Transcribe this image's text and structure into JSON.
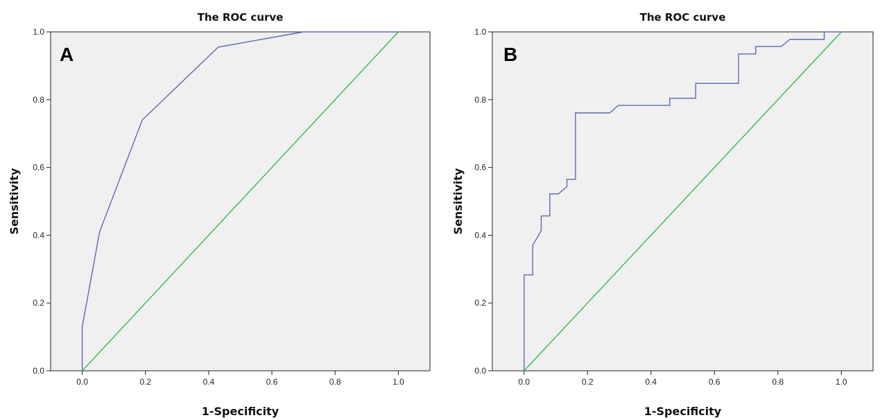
{
  "chart_data": [
    {
      "type": "line",
      "panel_letter": "A",
      "title": "The ROC curve",
      "xlabel": "1-Specificity",
      "ylabel": "Sensitivity",
      "xlim": [
        -0.1,
        1.1
      ],
      "ylim": [
        0.0,
        1.0
      ],
      "x_ticks": [
        "0.0",
        "0.2",
        "0.4",
        "0.6",
        "0.8",
        "1.0"
      ],
      "y_ticks": [
        "0.0",
        "0.2",
        "0.4",
        "0.6",
        "0.8",
        "1.0"
      ],
      "grid": false,
      "series": [
        {
          "role": "roc",
          "color": "#5a6bb0",
          "x": [
            0.0,
            0.0,
            0.055,
            0.19,
            0.43,
            0.7,
            1.0
          ],
          "y": [
            0.0,
            0.13,
            0.41,
            0.74,
            0.955,
            1.0,
            1.0
          ]
        },
        {
          "role": "reference",
          "color": "#35b84a",
          "x": [
            0.0,
            1.0
          ],
          "y": [
            0.0,
            1.0
          ]
        }
      ]
    },
    {
      "type": "line",
      "panel_letter": "B",
      "title": "The ROC curve",
      "xlabel": "1-Specificity",
      "ylabel": "Sensitivity",
      "xlim": [
        -0.1,
        1.1
      ],
      "ylim": [
        0.0,
        1.0
      ],
      "x_ticks": [
        "0.0",
        "0.2",
        "0.4",
        "0.6",
        "0.8",
        "1.0"
      ],
      "y_ticks": [
        "0.0",
        "0.2",
        "0.4",
        "0.6",
        "0.8",
        "1.0"
      ],
      "grid": false,
      "series": [
        {
          "role": "roc",
          "color": "#5a6bb0",
          "x": [
            0.0,
            0.0,
            0.027,
            0.027,
            0.054,
            0.054,
            0.081,
            0.081,
            0.108,
            0.135,
            0.135,
            0.162,
            0.162,
            0.27,
            0.297,
            0.459,
            0.459,
            0.541,
            0.541,
            0.676,
            0.676,
            0.73,
            0.73,
            0.811,
            0.838,
            0.946,
            0.946,
            1.0
          ],
          "y": [
            0.0,
            0.283,
            0.283,
            0.37,
            0.413,
            0.457,
            0.457,
            0.522,
            0.522,
            0.543,
            0.565,
            0.565,
            0.761,
            0.761,
            0.783,
            0.783,
            0.804,
            0.804,
            0.848,
            0.848,
            0.935,
            0.935,
            0.957,
            0.957,
            0.978,
            0.978,
            1.0,
            1.0
          ]
        },
        {
          "role": "reference",
          "color": "#35b84a",
          "x": [
            0.0,
            1.0
          ],
          "y": [
            0.0,
            1.0
          ]
        }
      ]
    }
  ]
}
